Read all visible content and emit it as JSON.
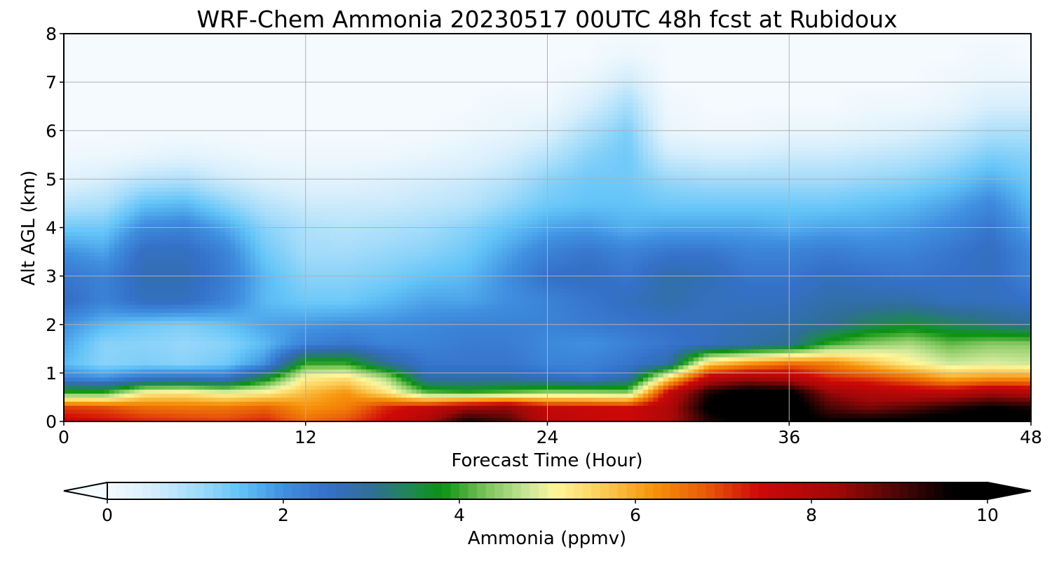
{
  "chart_data": {
    "type": "heatmap",
    "title": "WRF-Chem Ammonia  20230517 00UTC 48h fcst at Rubidoux",
    "xlabel": "Forecast Time (Hour)",
    "ylabel": "Alt AGL (km)",
    "xlim": [
      0,
      48
    ],
    "ylim": [
      0,
      8
    ],
    "x_ticks": [
      "0",
      "12",
      "24",
      "36",
      "48"
    ],
    "y_ticks": [
      "0",
      "1",
      "2",
      "3",
      "4",
      "5",
      "6",
      "7",
      "8"
    ],
    "grid": true,
    "colorbar": {
      "label": "Ammonia  (ppmv)",
      "min": 0,
      "max": 10,
      "ticks": [
        "0",
        "2",
        "4",
        "6",
        "8",
        "10"
      ],
      "extend": "both",
      "stops": [
        {
          "v": 0,
          "c": "#f4fafe"
        },
        {
          "v": 0.5,
          "c": "#d6eefc"
        },
        {
          "v": 1.0,
          "c": "#a4dcfa"
        },
        {
          "v": 1.5,
          "c": "#63c4f8"
        },
        {
          "v": 2.0,
          "c": "#3f8fe0"
        },
        {
          "v": 2.5,
          "c": "#3570c8"
        },
        {
          "v": 3.0,
          "c": "#2f6e96"
        },
        {
          "v": 3.5,
          "c": "#1c8a4a"
        },
        {
          "v": 3.8,
          "c": "#0a9210"
        },
        {
          "v": 4.3,
          "c": "#7cc45a"
        },
        {
          "v": 4.8,
          "c": "#cfe89a"
        },
        {
          "v": 5.1,
          "c": "#fff69a"
        },
        {
          "v": 5.6,
          "c": "#fccf5a"
        },
        {
          "v": 6.2,
          "c": "#f7930a"
        },
        {
          "v": 6.8,
          "c": "#e85a08"
        },
        {
          "v": 7.4,
          "c": "#cf0808"
        },
        {
          "v": 8.3,
          "c": "#a00808"
        },
        {
          "v": 9.0,
          "c": "#4a0606"
        },
        {
          "v": 9.6,
          "c": "#000000"
        },
        {
          "v": 10.0,
          "c": "#000000"
        }
      ]
    },
    "grid_data": {
      "x_hours": [
        0,
        2,
        4,
        6,
        8,
        10,
        12,
        14,
        16,
        18,
        20,
        22,
        24,
        26,
        28,
        30,
        32,
        34,
        36,
        38,
        40,
        42,
        44,
        46,
        48
      ],
      "z_km": [
        0.0,
        0.3,
        0.6,
        0.9,
        1.2,
        1.6,
        2.0,
        2.5,
        3.0,
        3.5,
        4.0,
        4.5,
        5.0,
        5.5,
        6.0,
        6.5,
        7.0,
        7.5,
        8.0
      ],
      "values_by_height": [
        [
          7.6,
          7.4,
          7.2,
          7.1,
          7.0,
          7.2,
          6.6,
          6.9,
          7.5,
          8.0,
          9.5,
          9.0,
          7.8,
          7.6,
          7.5,
          8.0,
          9.3,
          9.8,
          9.7,
          9.6,
          9.7,
          9.8,
          9.9,
          10.0,
          9.8
        ],
        [
          7.0,
          6.9,
          6.6,
          6.5,
          6.5,
          6.7,
          6.2,
          6.4,
          7.2,
          7.6,
          8.2,
          8.4,
          7.6,
          7.5,
          7.4,
          8.0,
          9.7,
          10.0,
          10.0,
          9.0,
          8.6,
          8.9,
          9.3,
          9.6,
          9.4
        ],
        [
          4.0,
          4.0,
          5.2,
          5.3,
          5.0,
          5.2,
          5.8,
          6.2,
          5.4,
          4.2,
          4.0,
          4.2,
          4.5,
          4.5,
          4.4,
          7.6,
          9.4,
          10.0,
          9.8,
          8.4,
          8.0,
          7.8,
          7.8,
          8.2,
          8.0
        ],
        [
          2.2,
          2.0,
          2.4,
          2.5,
          2.4,
          3.6,
          5.2,
          5.4,
          4.6,
          2.8,
          2.8,
          2.8,
          2.6,
          2.4,
          2.8,
          5.5,
          7.8,
          8.2,
          8.0,
          7.2,
          7.0,
          6.6,
          6.0,
          6.2,
          6.2
        ],
        [
          1.6,
          1.2,
          1.3,
          1.2,
          1.4,
          2.0,
          4.0,
          4.0,
          3.0,
          2.4,
          2.4,
          2.4,
          2.2,
          2.2,
          2.4,
          2.8,
          5.6,
          6.2,
          6.6,
          6.4,
          5.8,
          5.2,
          4.8,
          4.9,
          4.8
        ],
        [
          1.8,
          1.2,
          1.2,
          1.1,
          1.2,
          1.6,
          2.2,
          2.4,
          2.2,
          2.2,
          2.3,
          2.3,
          2.1,
          2.0,
          2.2,
          2.4,
          2.6,
          2.8,
          3.0,
          4.0,
          4.4,
          4.6,
          4.2,
          4.4,
          4.4
        ],
        [
          2.0,
          1.6,
          1.4,
          1.3,
          1.5,
          1.8,
          1.9,
          2.0,
          2.0,
          2.1,
          2.2,
          2.2,
          2.2,
          2.3,
          2.4,
          2.5,
          2.6,
          2.7,
          2.8,
          3.0,
          3.4,
          3.6,
          3.4,
          3.2,
          3.0
        ],
        [
          2.6,
          2.2,
          2.6,
          2.6,
          2.2,
          1.6,
          1.4,
          1.4,
          1.6,
          1.8,
          1.8,
          2.0,
          2.2,
          2.4,
          2.6,
          2.8,
          2.6,
          2.6,
          2.6,
          2.8,
          2.8,
          2.8,
          2.6,
          2.6,
          2.5
        ],
        [
          2.4,
          2.2,
          2.7,
          2.7,
          2.3,
          1.6,
          1.2,
          1.2,
          1.3,
          1.5,
          1.6,
          2.0,
          2.5,
          2.6,
          2.4,
          2.8,
          2.7,
          2.4,
          2.4,
          2.6,
          2.5,
          2.4,
          2.5,
          2.6,
          2.2
        ],
        [
          2.0,
          1.8,
          2.6,
          2.6,
          2.2,
          1.4,
          1.0,
          1.0,
          1.1,
          1.2,
          1.4,
          1.8,
          2.2,
          2.4,
          2.2,
          2.4,
          2.4,
          2.2,
          2.2,
          2.3,
          2.2,
          2.2,
          2.4,
          2.6,
          2.1
        ],
        [
          1.4,
          1.4,
          2.1,
          2.2,
          1.8,
          1.2,
          0.9,
          0.8,
          0.9,
          1.0,
          1.2,
          1.5,
          1.8,
          1.9,
          1.7,
          1.8,
          1.8,
          1.8,
          1.7,
          1.8,
          1.8,
          1.9,
          2.1,
          2.4,
          1.8
        ],
        [
          0.8,
          0.9,
          1.5,
          1.6,
          1.2,
          0.8,
          0.6,
          0.6,
          0.6,
          0.7,
          0.8,
          1.1,
          1.4,
          1.5,
          1.5,
          1.4,
          1.4,
          1.4,
          1.4,
          1.4,
          1.5,
          1.6,
          1.8,
          2.1,
          1.6
        ],
        [
          0.3,
          0.5,
          0.8,
          0.9,
          0.6,
          0.4,
          0.3,
          0.3,
          0.4,
          0.5,
          0.6,
          0.8,
          1.2,
          1.4,
          1.4,
          1.1,
          1.0,
          1.0,
          1.0,
          1.0,
          1.1,
          1.2,
          1.4,
          1.7,
          1.4
        ],
        [
          0.1,
          0.1,
          0.2,
          0.3,
          0.2,
          0.1,
          0.1,
          0.1,
          0.1,
          0.2,
          0.3,
          0.5,
          0.8,
          1.2,
          1.4,
          0.6,
          0.5,
          0.5,
          0.6,
          0.6,
          0.7,
          0.8,
          1.0,
          1.3,
          1.2
        ],
        [
          0.0,
          0.0,
          0.0,
          0.0,
          0.0,
          0.0,
          0.0,
          0.0,
          0.0,
          0.0,
          0.1,
          0.2,
          0.4,
          0.9,
          1.3,
          0.2,
          0.1,
          0.1,
          0.2,
          0.2,
          0.3,
          0.4,
          0.6,
          0.9,
          0.9
        ],
        [
          0.0,
          0.0,
          0.0,
          0.0,
          0.0,
          0.0,
          0.0,
          0.0,
          0.0,
          0.0,
          0.0,
          0.1,
          0.1,
          0.5,
          1.0,
          0.1,
          0.0,
          0.0,
          0.0,
          0.0,
          0.1,
          0.1,
          0.2,
          0.5,
          0.5
        ],
        [
          0.0,
          0.0,
          0.0,
          0.0,
          0.0,
          0.0,
          0.0,
          0.0,
          0.0,
          0.0,
          0.0,
          0.0,
          0.0,
          0.2,
          0.6,
          0.0,
          0.0,
          0.0,
          0.0,
          0.0,
          0.0,
          0.0,
          0.1,
          0.2,
          0.2
        ],
        [
          0.0,
          0.0,
          0.0,
          0.0,
          0.0,
          0.0,
          0.0,
          0.0,
          0.0,
          0.0,
          0.0,
          0.0,
          0.0,
          0.0,
          0.2,
          0.0,
          0.0,
          0.0,
          0.0,
          0.0,
          0.0,
          0.0,
          0.0,
          0.1,
          0.0
        ],
        [
          0.0,
          0.0,
          0.0,
          0.0,
          0.0,
          0.0,
          0.0,
          0.0,
          0.0,
          0.0,
          0.0,
          0.0,
          0.0,
          0.0,
          0.0,
          0.0,
          0.0,
          0.0,
          0.0,
          0.0,
          0.0,
          0.0,
          0.0,
          0.0,
          0.0
        ]
      ]
    }
  }
}
